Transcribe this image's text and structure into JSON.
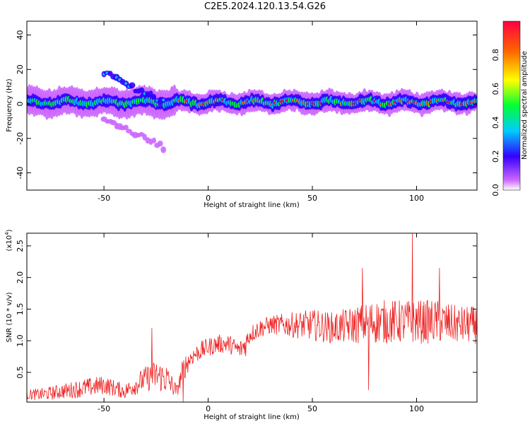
{
  "title": "C2E5.2024.120.13.54.G26",
  "chart_data": [
    {
      "type": "heatmap",
      "xlabel": "Height of straight line (km)",
      "ylabel": "Frequency (Hz)",
      "xlim": [
        -87,
        129
      ],
      "ylim": [
        -50,
        48
      ],
      "xticks": [
        -50,
        0,
        50,
        100
      ],
      "yticks": [
        -40,
        -20,
        0,
        20,
        40
      ],
      "colorbar": {
        "label": "Normalized spectral amplitude",
        "range": [
          0.0,
          1.0
        ],
        "ticks": [
          "0.0",
          "0.2",
          "0.4",
          "0.6",
          "0.8"
        ],
        "colors": [
          "#ffffff",
          "#cc66ff",
          "#3300ff",
          "#00ccff",
          "#00ff33",
          "#ffff00",
          "#ff6600",
          "#ff0033"
        ]
      },
      "features": [
        {
          "name": "main band",
          "x": [
            -87,
            129
          ],
          "y_center": 1,
          "y_halfwidth": 4
        },
        {
          "name": "upper branch",
          "x": [
            -50,
            -20
          ],
          "y_start": 18,
          "y_end": 0
        },
        {
          "name": "lower branch",
          "x": [
            -50,
            -20
          ],
          "y_start": -8,
          "y_end": -26
        }
      ]
    },
    {
      "type": "line",
      "xlabel": "Height of straight line (km)",
      "ylabel": "SNR (10 * v/v)",
      "yscale_label": "(x10",
      "yscale_exp": "4",
      "yscale_close": ")",
      "xlim": [
        -87,
        129
      ],
      "ylim": [
        0.03,
        2.7
      ],
      "xticks": [
        -50,
        0,
        50,
        100
      ],
      "yticks": [
        "0.5",
        "1.0",
        "1.5",
        "2.0",
        "2.5"
      ],
      "grid": false,
      "color": "#ee2222",
      "x": [
        -87,
        -80,
        -70,
        -60,
        -50,
        -40,
        -30,
        -25,
        -20,
        -15,
        -12,
        -8,
        -3,
        0,
        5,
        10,
        15,
        18,
        20,
        25,
        30,
        40,
        50,
        60,
        70,
        80,
        90,
        100,
        110,
        120,
        129
      ],
      "y": [
        0.15,
        0.15,
        0.2,
        0.25,
        0.3,
        0.2,
        0.4,
        0.45,
        0.4,
        0.2,
        0.55,
        0.75,
        0.85,
        0.9,
        0.95,
        0.95,
        0.85,
        0.95,
        1.1,
        1.2,
        1.25,
        1.25,
        1.25,
        1.2,
        1.25,
        1.3,
        1.3,
        1.3,
        1.3,
        1.25,
        1.25
      ],
      "amplitude": [
        0.08,
        0.1,
        0.12,
        0.15,
        0.15,
        0.12,
        0.2,
        0.25,
        0.25,
        0.1,
        0.2,
        0.15,
        0.15,
        0.15,
        0.15,
        0.15,
        0.15,
        0.2,
        0.15,
        0.15,
        0.15,
        0.2,
        0.25,
        0.25,
        0.3,
        0.35,
        0.35,
        0.35,
        0.35,
        0.3,
        0.3
      ],
      "peaks": [
        {
          "x": 98,
          "y": 2.7
        },
        {
          "x": 74,
          "y": 2.15
        },
        {
          "x": 111,
          "y": 2.15
        },
        {
          "x": 77,
          "y": 0.22
        },
        {
          "x": -27,
          "y": 1.2
        },
        {
          "x": -12,
          "y": 0.03
        }
      ]
    }
  ]
}
